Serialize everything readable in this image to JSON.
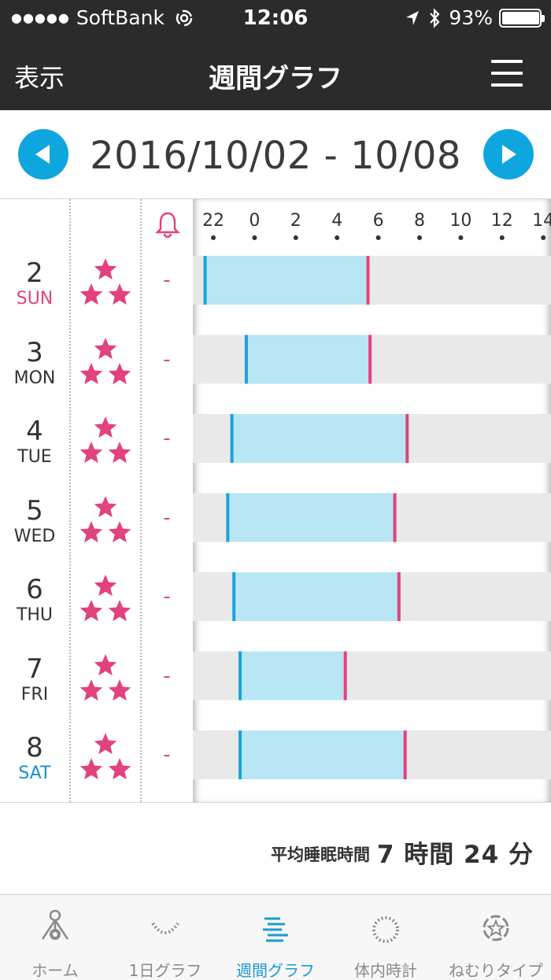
{
  "status_bar": {
    "signal_dots": "●●●●●",
    "carrier": "SoftBank",
    "time": "12:06",
    "battery": "93%",
    "battery_level": 0.93
  },
  "nav": {
    "left_label": "表示",
    "title": "週間グラフ",
    "menu_icon": "hamburger-icon"
  },
  "date_range": "2016/10/02 - 10/08",
  "chart": {
    "hour_labels": [
      "22",
      "0",
      "2",
      "4",
      "6",
      "8",
      "10",
      "12",
      "14"
    ],
    "hour_values": [
      22,
      24,
      26,
      28,
      30,
      32,
      34,
      36,
      38
    ],
    "accent_sleep": "#b9e6f5",
    "accent_start": "#1aa3dc",
    "accent_end": "#e2427e",
    "days": [
      {
        "num": "2",
        "name": "SUN",
        "alarm": "-",
        "sleep_start": 21.6,
        "sleep_end": 29.5,
        "rating": 3
      },
      {
        "num": "3",
        "name": "MON",
        "alarm": "-",
        "sleep_start": 23.6,
        "sleep_end": 29.6,
        "rating": 3
      },
      {
        "num": "4",
        "name": "TUE",
        "alarm": "-",
        "sleep_start": 22.9,
        "sleep_end": 31.4,
        "rating": 3
      },
      {
        "num": "5",
        "name": "WED",
        "alarm": "-",
        "sleep_start": 22.7,
        "sleep_end": 30.8,
        "rating": 3
      },
      {
        "num": "6",
        "name": "THU",
        "alarm": "-",
        "sleep_start": 23.0,
        "sleep_end": 31.0,
        "rating": 3
      },
      {
        "num": "7",
        "name": "FRI",
        "alarm": "-",
        "sleep_start": 23.3,
        "sleep_end": 28.4,
        "rating": 3
      },
      {
        "num": "8",
        "name": "SAT",
        "alarm": "-",
        "sleep_start": 23.3,
        "sleep_end": 31.3,
        "rating": 3
      }
    ]
  },
  "average": {
    "label": "平均睡眠時間",
    "value": "7 時間 24 分"
  },
  "tabs": [
    {
      "label": "ホーム",
      "icon": "home-person-icon",
      "active": false
    },
    {
      "label": "1日グラフ",
      "icon": "daily-graph-icon",
      "active": false
    },
    {
      "label": "週間グラフ",
      "icon": "weekly-graph-icon",
      "active": true
    },
    {
      "label": "体内時計",
      "icon": "body-clock-icon",
      "active": false
    },
    {
      "label": "ねむりタイプ",
      "icon": "sleep-type-icon",
      "active": false
    }
  ]
}
